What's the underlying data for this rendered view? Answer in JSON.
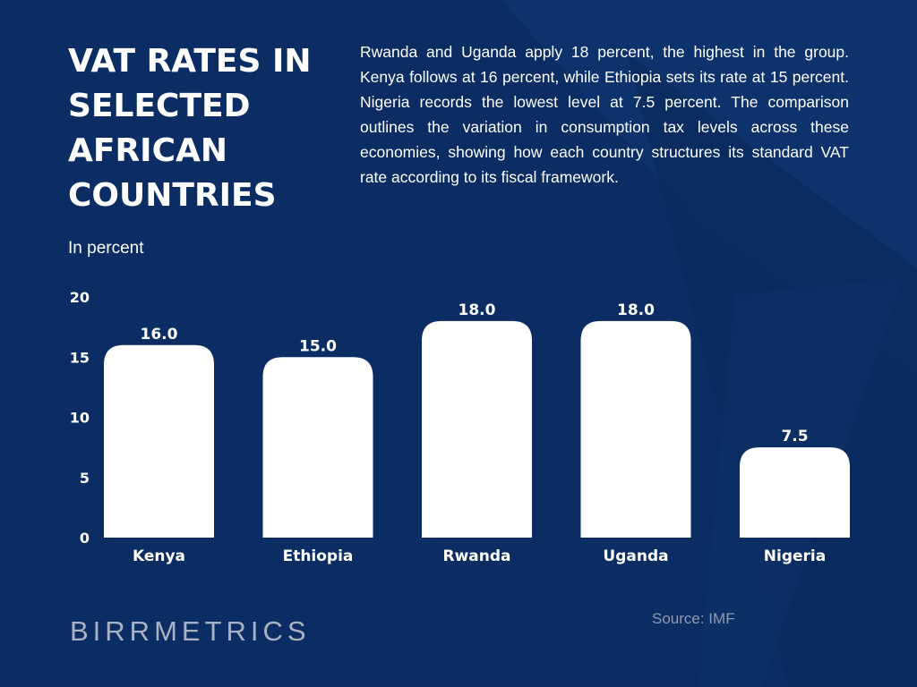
{
  "title": "VAT RATES IN SELECTED AFRICAN COUNTRIES",
  "description": "Rwanda and Uganda apply 18 percent, the highest in the group. Kenya follows at 16 percent, while Ethiopia sets its rate at 15 percent. Nigeria records the lowest level at 7.5 percent. The comparison outlines the variation in consumption tax levels across these economies, showing how each country structures its standard VAT rate according to its fiscal framework.",
  "unit_label": "In percent",
  "brand": "BIRRMETRICS",
  "source": "Source: IMF",
  "colors": {
    "background": "#0b2d63",
    "bar": "#ffffff",
    "text": "#ffffff",
    "muted": "#a9b2c4"
  },
  "chart_data": {
    "type": "bar",
    "title": "VAT RATES IN SELECTED AFRICAN COUNTRIES",
    "xlabel": "",
    "ylabel": "In percent",
    "categories": [
      "Kenya",
      "Ethiopia",
      "Rwanda",
      "Uganda",
      "Nigeria"
    ],
    "values": [
      16.0,
      15.0,
      18.0,
      18.0,
      7.5
    ],
    "value_labels": [
      "16.0",
      "15.0",
      "18.0",
      "18.0",
      "7.5"
    ],
    "ylim": [
      0,
      20
    ],
    "yticks": [
      0,
      5,
      10,
      15,
      20
    ],
    "grid": false,
    "legend": "none"
  }
}
